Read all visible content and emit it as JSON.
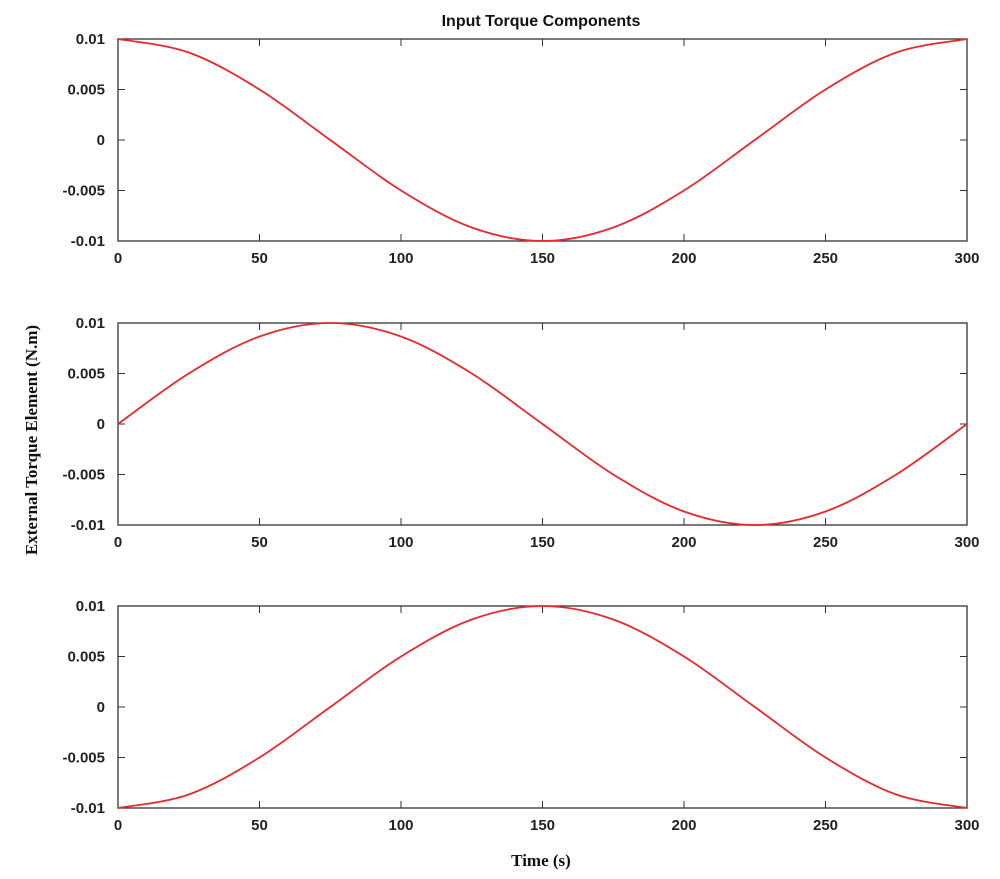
{
  "chart_data": {
    "type": "line",
    "title": "Input Torque Components",
    "xlabel": "Time (s)",
    "ylabel": "External Torque Element (N.m)",
    "line_color": "#e8282e",
    "grid": false,
    "subplots": [
      {
        "xlim": [
          0,
          300
        ],
        "ylim": [
          -0.01,
          0.01
        ],
        "xticks": [
          "0",
          "50",
          "100",
          "150",
          "200",
          "250",
          "300"
        ],
        "yticks": [
          "0.01",
          "0.005",
          "0",
          "-0.005",
          "-0.01"
        ],
        "series": [
          {
            "x": [
              0,
              25,
              50,
              75,
              100,
              125,
              150,
              175,
              200,
              225,
              250,
              275,
              300
            ],
            "y": [
              0.01,
              0.00866,
              0.005,
              0,
              -0.005,
              -0.00866,
              -0.01,
              -0.00866,
              -0.005,
              0,
              0.005,
              0.00866,
              0.01
            ]
          }
        ]
      },
      {
        "xlim": [
          0,
          300
        ],
        "ylim": [
          -0.01,
          0.01
        ],
        "xticks": [
          "0",
          "50",
          "100",
          "150",
          "200",
          "250",
          "300"
        ],
        "yticks": [
          "0.01",
          "0.005",
          "0",
          "-0.005",
          "-0.01"
        ],
        "series": [
          {
            "x": [
              0,
              25,
              50,
              75,
              100,
              125,
              150,
              175,
              200,
              225,
              250,
              275,
              300
            ],
            "y": [
              0,
              0.005,
              0.00866,
              0.01,
              0.00866,
              0.005,
              0,
              -0.005,
              -0.00866,
              -0.01,
              -0.00866,
              -0.005,
              0
            ]
          }
        ]
      },
      {
        "xlim": [
          0,
          300
        ],
        "ylim": [
          -0.01,
          0.01
        ],
        "xticks": [
          "0",
          "50",
          "100",
          "150",
          "200",
          "250",
          "300"
        ],
        "yticks": [
          "0.01",
          "0.005",
          "0",
          "-0.005",
          "-0.01"
        ],
        "series": [
          {
            "x": [
              0,
              25,
              50,
              75,
              100,
              125,
              150,
              175,
              200,
              225,
              250,
              275,
              300
            ],
            "y": [
              -0.01,
              -0.00866,
              -0.005,
              0,
              0.005,
              0.00866,
              0.01,
              0.00866,
              0.005,
              0,
              -0.005,
              -0.00866,
              -0.01
            ]
          }
        ]
      }
    ]
  }
}
